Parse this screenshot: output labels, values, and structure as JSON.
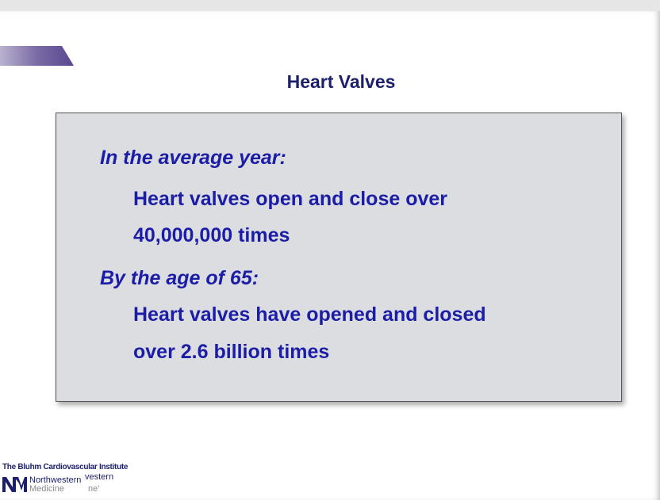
{
  "header": {
    "title": "Heart Valves"
  },
  "content": [
    {
      "heading": "In the average year:",
      "lines": [
        "Heart valves open and close over",
        "40,000,000 times"
      ]
    },
    {
      "heading": "By the age of 65:",
      "lines": [
        "Heart valves have opened and closed",
        "over 2.6 billion times"
      ]
    }
  ],
  "footer": {
    "institute": "The Bluhm Cardiovascular Institute",
    "brand": "Northwestern",
    "sub": "Medicine",
    "ghost_brand": "vestern",
    "ghost_sub": "ne'"
  }
}
